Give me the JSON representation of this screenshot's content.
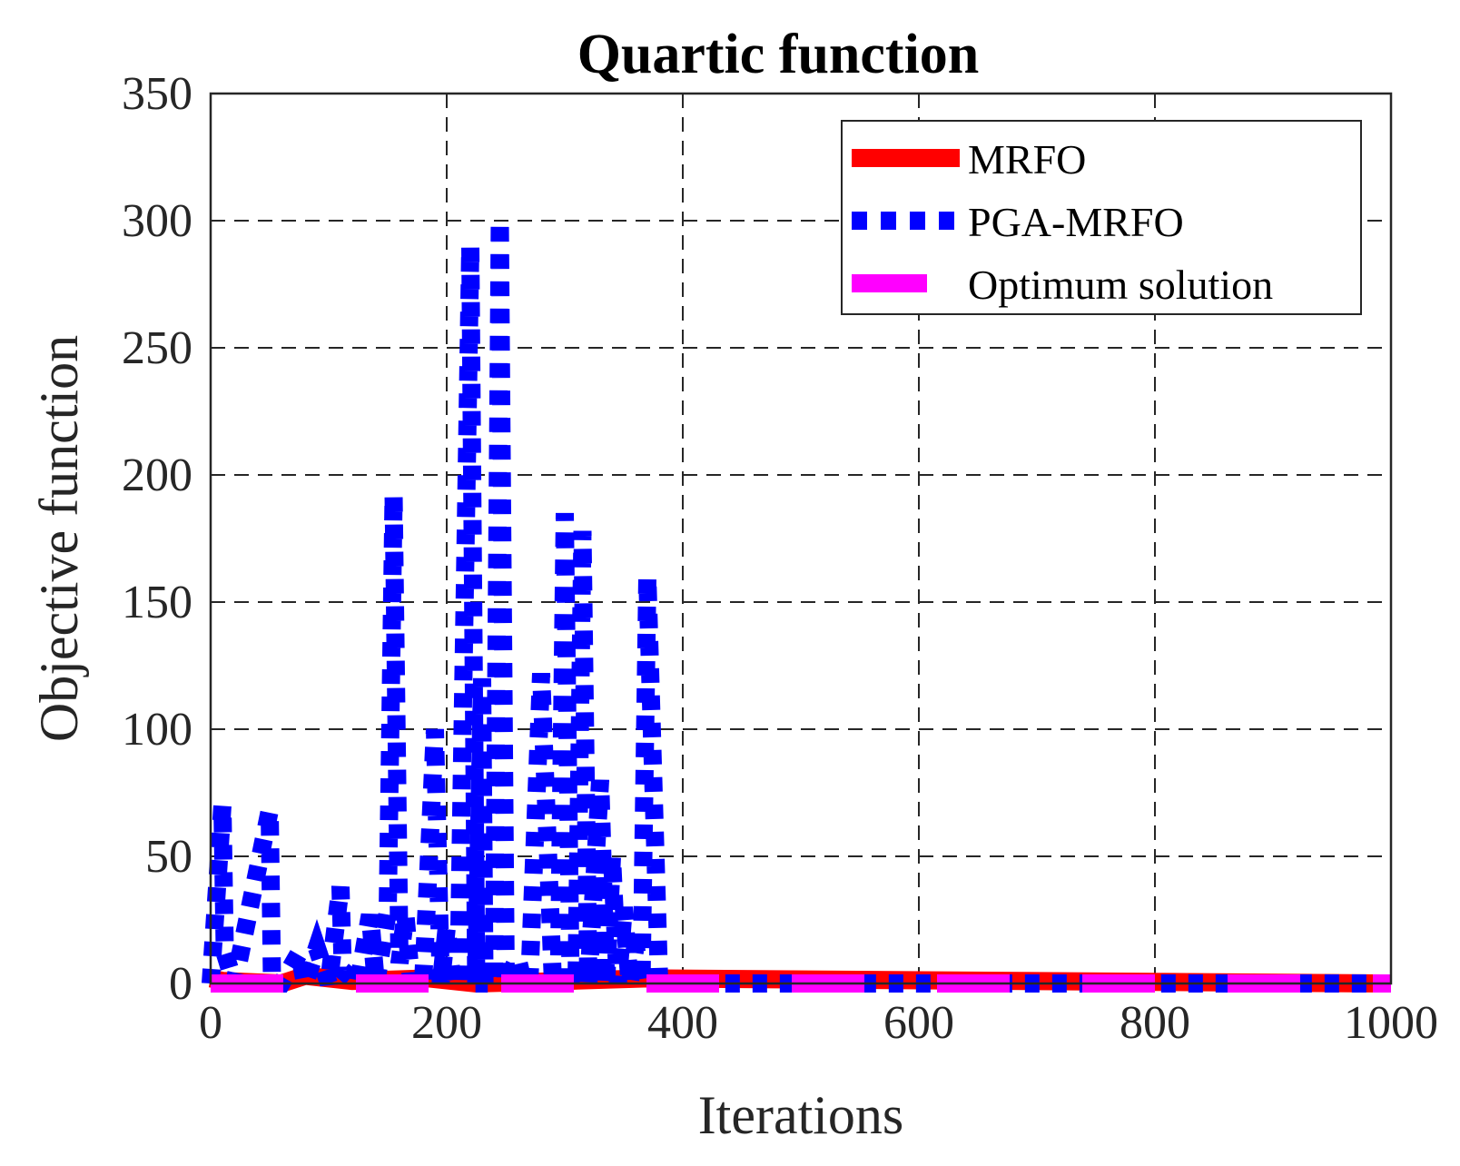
{
  "chart_data": {
    "type": "line",
    "title": "Quartic function",
    "xlabel": "Iterations",
    "ylabel": "Objective function",
    "xlim": [
      0,
      1000
    ],
    "ylim": [
      0,
      350
    ],
    "xticks": [
      0,
      200,
      400,
      600,
      800,
      1000
    ],
    "yticks": [
      0,
      50,
      100,
      150,
      200,
      250,
      300,
      350
    ],
    "grid": true,
    "legend_position": "top-right",
    "series": [
      {
        "name": "MRFO",
        "style": "solid",
        "color": "#ff0000",
        "x": [
          0,
          10,
          60,
          80,
          120,
          185,
          225,
          300,
          370,
          1000
        ],
        "y": [
          2,
          1,
          0,
          3,
          1,
          2,
          0,
          1,
          2,
          0
        ]
      },
      {
        "name": "PGA-MRFO",
        "style": "dotted",
        "color": "#0000ff",
        "x": [
          0,
          10,
          12,
          20,
          50,
          52,
          60,
          75,
          80,
          90,
          100,
          110,
          112,
          125,
          135,
          140,
          150,
          155,
          160,
          165,
          170,
          180,
          190,
          195,
          200,
          205,
          210,
          220,
          225,
          230,
          232,
          240,
          245,
          250,
          260,
          265,
          270,
          280,
          290,
          295,
          300,
          305,
          310,
          315,
          320,
          330,
          335,
          340,
          345,
          350,
          355,
          360,
          365,
          370,
          380,
          385,
          390,
          395,
          400,
          1000
        ],
        "y": [
          0,
          70,
          12,
          0,
          68,
          0,
          0,
          12,
          0,
          14,
          0,
          38,
          5,
          0,
          27,
          0,
          28,
          192,
          8,
          27,
          0,
          0,
          100,
          0,
          22,
          0,
          0,
          290,
          0,
          120,
          0,
          0,
          300,
          0,
          10,
          0,
          0,
          122,
          0,
          0,
          185,
          0,
          0,
          178,
          0,
          80,
          0,
          50,
          0,
          30,
          0,
          15,
          0,
          160,
          0,
          0,
          0,
          0,
          0,
          0
        ]
      },
      {
        "name": "Optimum solution",
        "style": "dashed",
        "color": "#ff00ff",
        "x": [
          0,
          1000
        ],
        "y": [
          0,
          0
        ]
      }
    ]
  }
}
